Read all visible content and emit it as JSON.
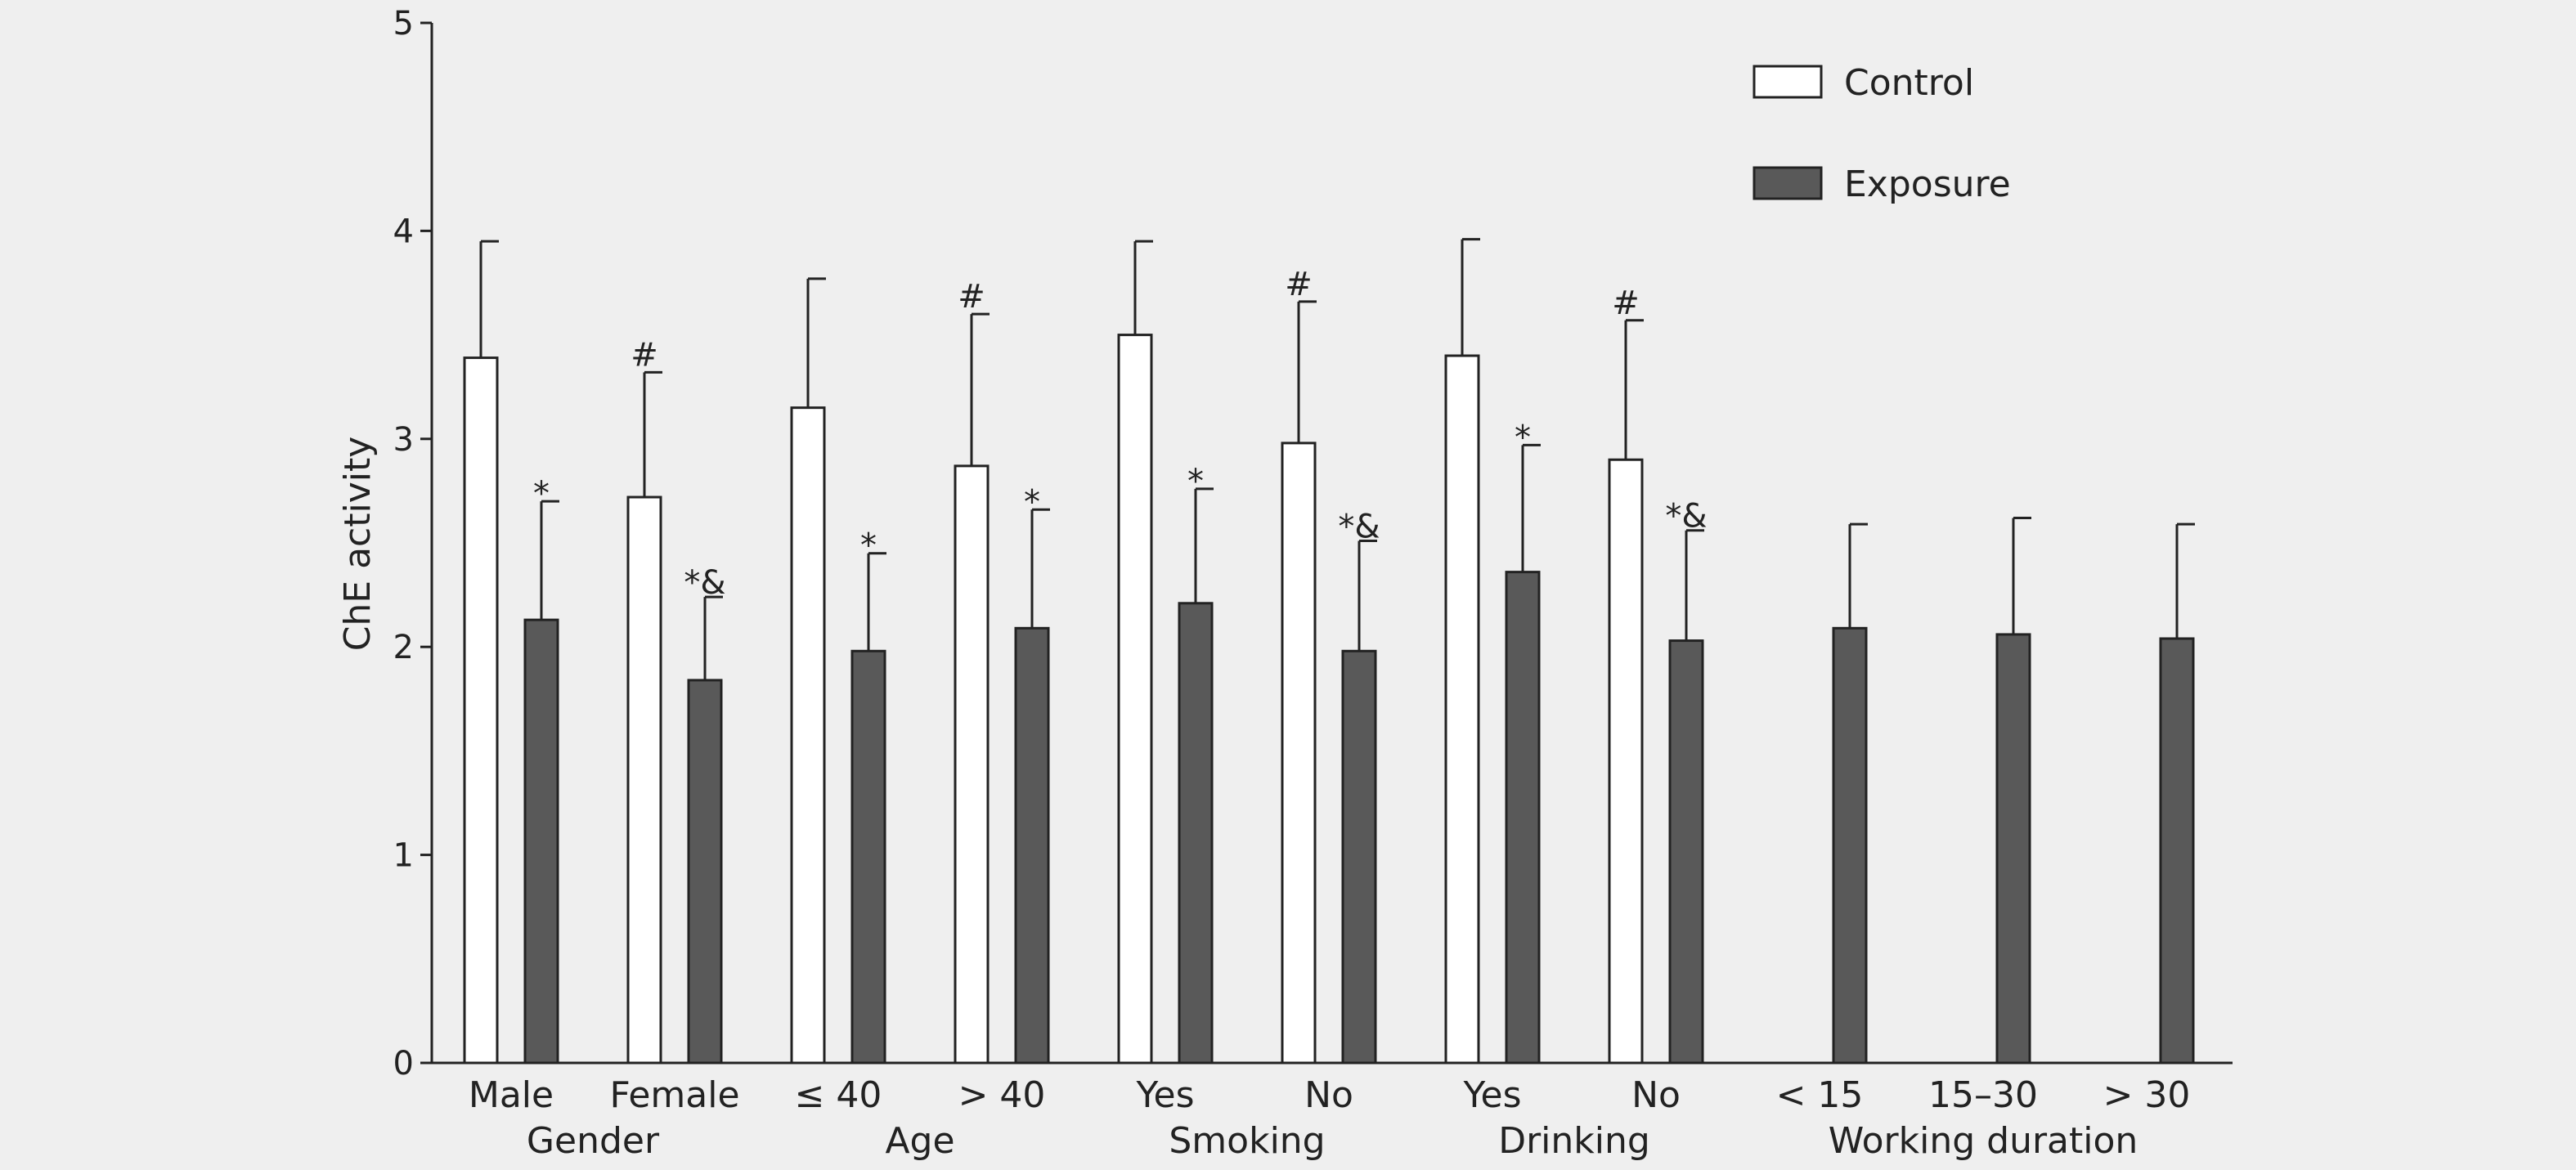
{
  "chart_data": {
    "type": "bar",
    "ylabel": "ChE activity",
    "ylim": [
      0,
      5
    ],
    "yticks": [
      "0",
      "1",
      "2",
      "3",
      "4",
      "5"
    ],
    "grid": false,
    "legend_position": "top-right",
    "categories": [
      "Male",
      "Female",
      "≤ 40",
      "> 40",
      "Yes",
      "No",
      "Yes",
      "No",
      "< 15",
      "15–30",
      "> 30"
    ],
    "groups": [
      {
        "label": "Gender",
        "categories": [
          0,
          1
        ]
      },
      {
        "label": "Age",
        "categories": [
          2,
          3
        ]
      },
      {
        "label": "Smoking",
        "categories": [
          4,
          5
        ]
      },
      {
        "label": "Drinking",
        "categories": [
          6,
          7
        ]
      },
      {
        "label": "Working duration",
        "categories": [
          8,
          9,
          10
        ]
      }
    ],
    "series": [
      {
        "name": "Control",
        "color": "#ffffff",
        "values": [
          3.39,
          2.72,
          3.15,
          2.87,
          3.5,
          2.98,
          3.4,
          2.9,
          null,
          null,
          null
        ],
        "errors": [
          0.56,
          0.6,
          0.62,
          0.73,
          0.45,
          0.68,
          0.56,
          0.67,
          null,
          null,
          null
        ],
        "marks": [
          "",
          "#",
          "",
          "#",
          "",
          "#",
          "",
          "#",
          "",
          "",
          ""
        ]
      },
      {
        "name": "Exposure",
        "color": "#595959",
        "values": [
          2.13,
          1.84,
          1.98,
          2.09,
          2.21,
          1.98,
          2.36,
          2.03,
          2.09,
          2.06,
          2.04
        ],
        "errors": [
          0.57,
          0.4,
          0.47,
          0.57,
          0.55,
          0.53,
          0.61,
          0.53,
          0.5,
          0.56,
          0.55
        ],
        "marks": [
          "*",
          "*&",
          "*",
          "*",
          "*",
          "*&",
          "*",
          "*&",
          "",
          "",
          ""
        ]
      }
    ]
  }
}
